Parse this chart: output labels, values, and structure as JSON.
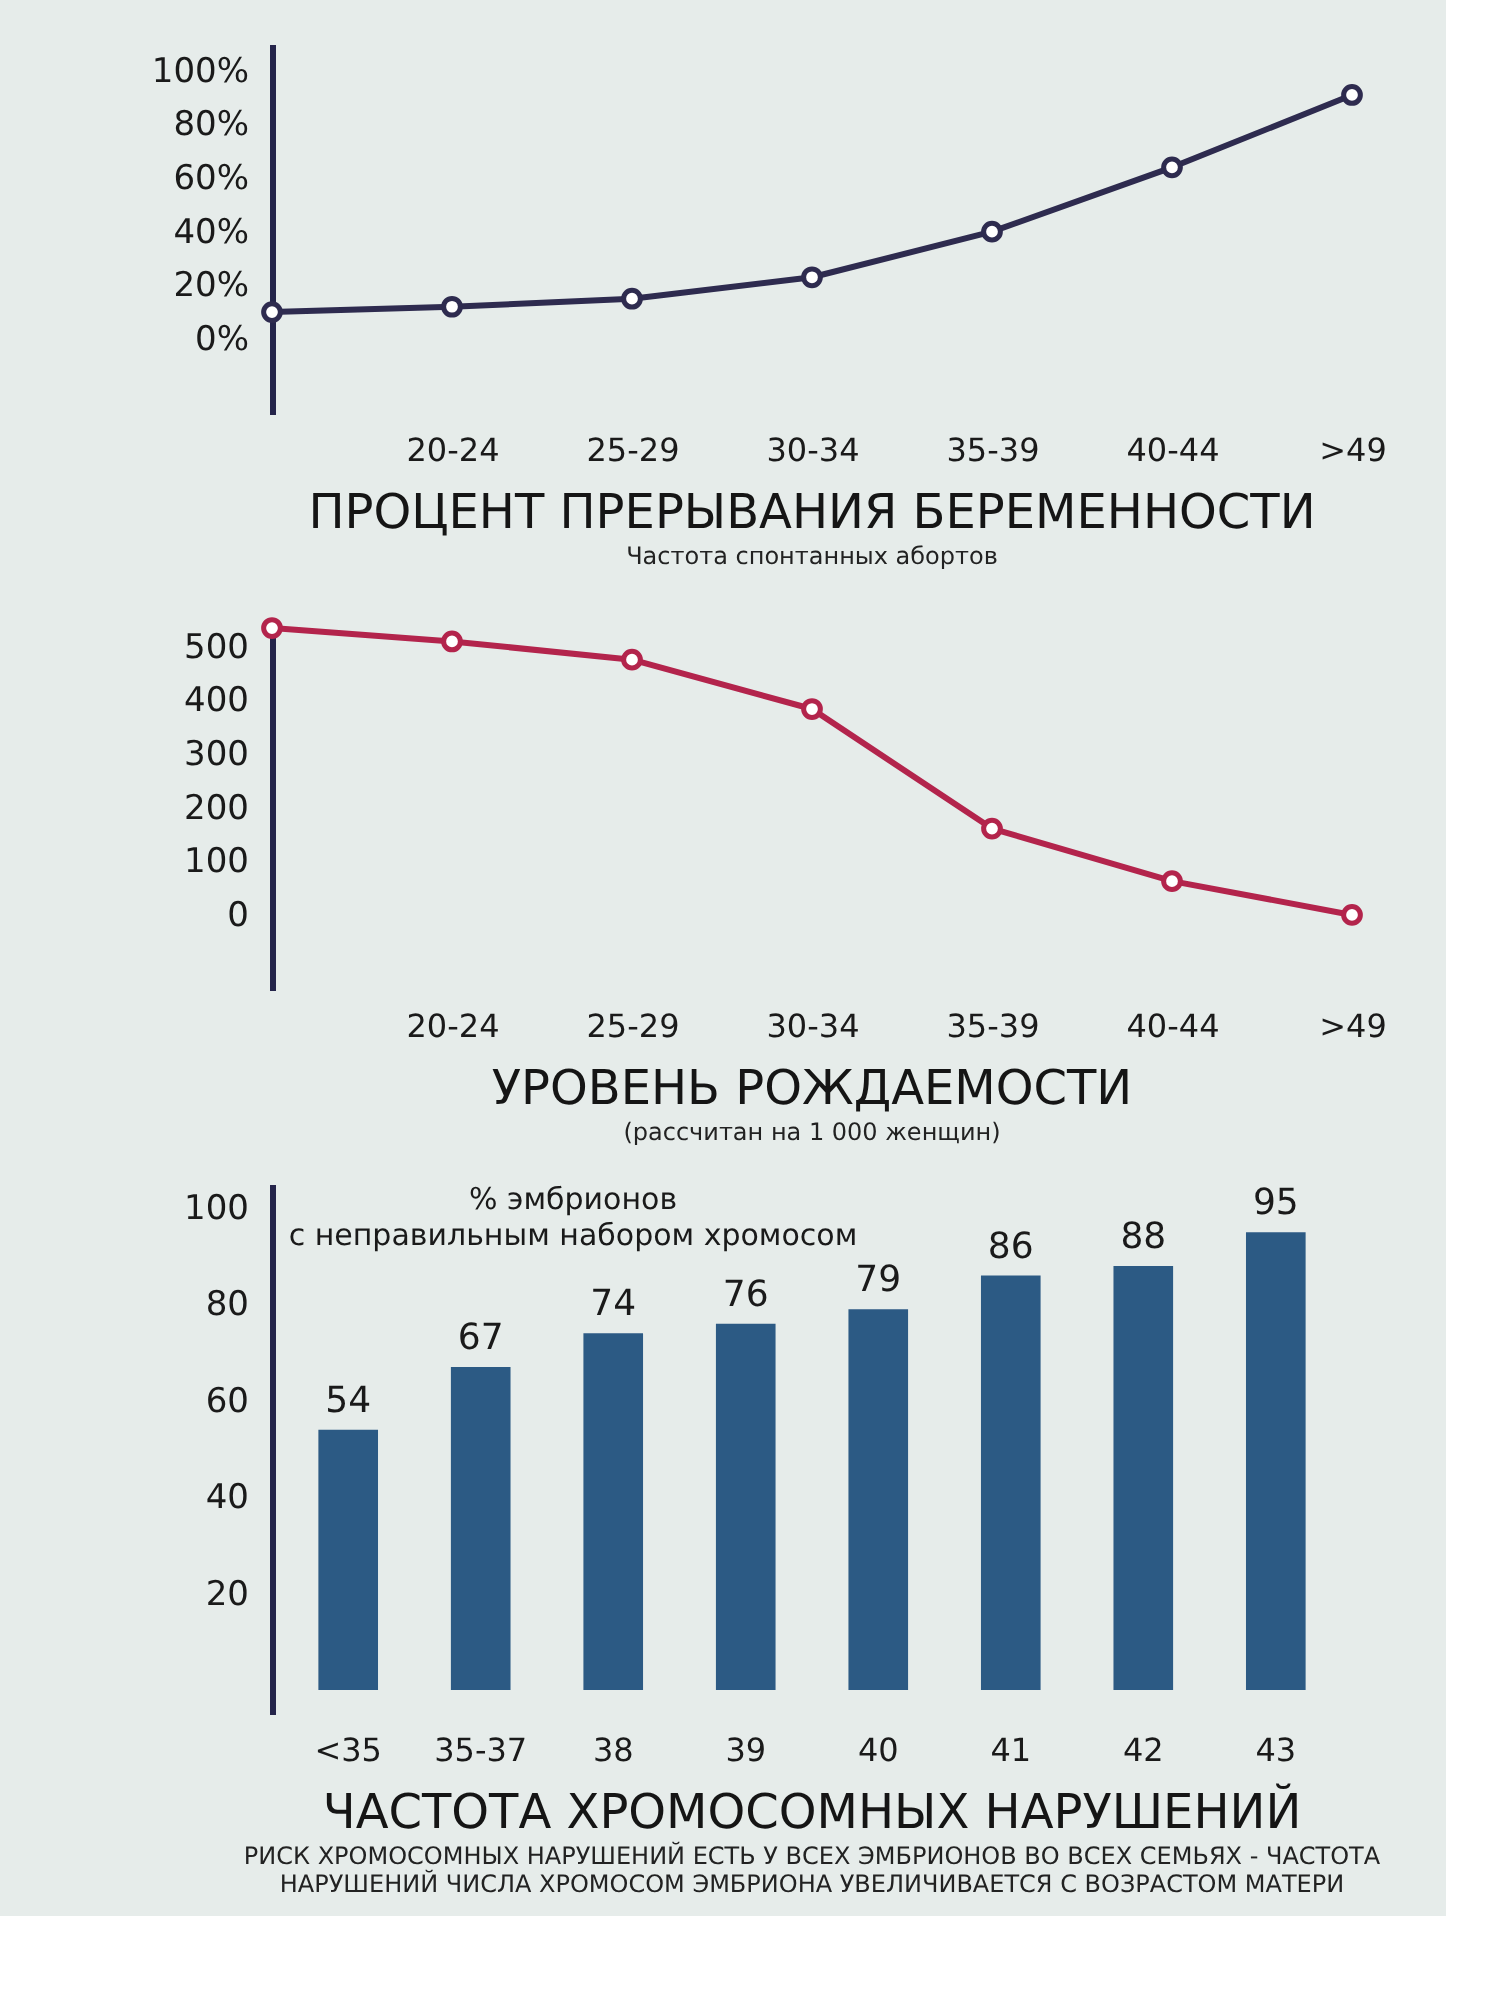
{
  "chart_data": [
    {
      "type": "line",
      "title": "ПРОЦЕНТ ПРЕРЫВАНИЯ БЕРЕМЕННОСТИ",
      "subtitle": "Частота спонтанных абортов",
      "categories": [
        null,
        "20-24",
        "25-29",
        "30-34",
        "35-39",
        "40-44",
        ">49"
      ],
      "series": [
        {
          "color": "#2e2b4f",
          "values": [
            10,
            12,
            15,
            23,
            40,
            64,
            91
          ]
        }
      ],
      "ylim": [
        -28,
        110
      ],
      "yticks": [
        {
          "value": 0,
          "label": "0%"
        },
        {
          "value": 20,
          "label": "20%"
        },
        {
          "value": 40,
          "label": "40%"
        },
        {
          "value": 60,
          "label": "60%"
        },
        {
          "value": 80,
          "label": "80%"
        },
        {
          "value": 100,
          "label": "100%"
        }
      ],
      "marker": "circle",
      "line_style": "solid"
    },
    {
      "type": "line",
      "title": "УРОВЕНЬ РОЖДАЕМОСТИ",
      "subtitle": "(рассчитан на 1 000 женщин)",
      "categories": [
        null,
        "20-24",
        "25-29",
        "30-34",
        "35-39",
        "40-44",
        ">49"
      ],
      "series": [
        {
          "color": "#b3244c",
          "values": [
            535,
            510,
            476,
            384,
            161,
            63,
            0
          ]
        }
      ],
      "ylim": [
        -140,
        550
      ],
      "yticks": [
        0,
        100,
        200,
        300,
        400,
        500
      ],
      "marker": "circle",
      "line_style": "solid"
    },
    {
      "type": "bar",
      "title": "ЧАСТОТА ХРОМОСОМНЫХ НАРУШЕНИЙ",
      "subtitle": "РИСК ХРОМОСОМНЫХ НАРУШЕНИЙ ЕСТЬ У ВСЕХ ЭМБРИОНОВ ВО ВСЕХ СЕМЬЯХ - ЧАСТОТА\nНАРУШЕНИЙ ЧИСЛА ХРОМОСОМ ЭМБРИОНА УВЕЛИЧИВАЕТСЯ С ВОЗРАСТОМ МАТЕРИ",
      "ylabel": "% эмбрионов\nс неправильным набором хромосом",
      "categories": [
        "<35",
        "35-37",
        "38",
        "39",
        "40",
        "41",
        "42",
        "43"
      ],
      "values": [
        54,
        67,
        74,
        76,
        79,
        86,
        88,
        95
      ],
      "color": "#2c5a84",
      "ylim": [
        -5,
        105
      ],
      "yticks": [
        20,
        40,
        60,
        80,
        100
      ],
      "data_labels": true
    }
  ]
}
